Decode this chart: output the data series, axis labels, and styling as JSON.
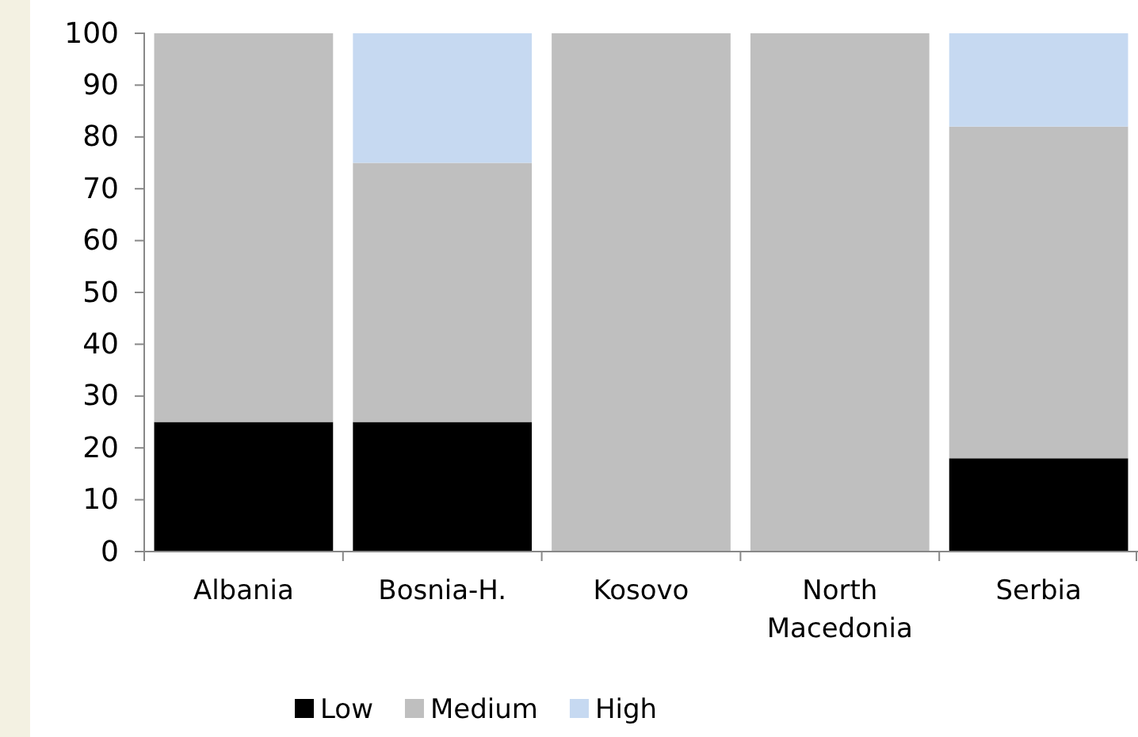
{
  "chart_data": {
    "type": "bar",
    "stacked": true,
    "categories": [
      "Albania",
      "Bosnia-H.",
      "Kosovo",
      "North Macedonia",
      "Serbia"
    ],
    "series": [
      {
        "name": "Low",
        "color": "#000000",
        "values": [
          25,
          25,
          0,
          0,
          18
        ]
      },
      {
        "name": "Medium",
        "color": "#bfbfbf",
        "values": [
          75,
          50,
          100,
          100,
          64
        ]
      },
      {
        "name": "High",
        "color": "#c6d9f1",
        "values": [
          0,
          25,
          0,
          0,
          18
        ]
      }
    ],
    "ylim": [
      0,
      100
    ],
    "yticks": [
      0,
      10,
      20,
      30,
      40,
      50,
      60,
      70,
      80,
      90,
      100
    ],
    "grid": false,
    "legend": "bottom"
  }
}
